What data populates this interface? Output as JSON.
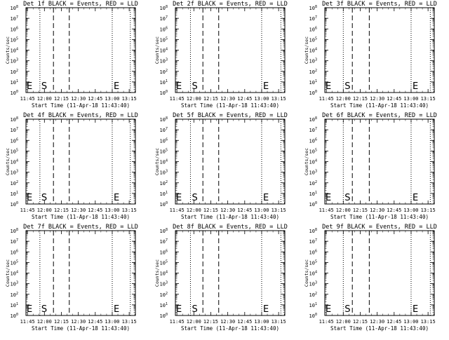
{
  "chart_data": {
    "type": "line",
    "layout": {
      "rows": 3,
      "cols": 3
    },
    "y_scale": "log",
    "ylim": [
      1,
      100000000
    ],
    "y_tick_base": "10",
    "y_tick_exponents": [
      "0",
      "1",
      "2",
      "3",
      "4",
      "5",
      "6",
      "7",
      "8"
    ],
    "x_tick_labels": [
      "11:45",
      "12:00",
      "12:15",
      "12:30",
      "12:45",
      "13:00",
      "13:15"
    ],
    "ylabel": "Counts/sec",
    "xlabel": "Start Time (11-Apr-18 11:43:40)",
    "markers": {
      "start": "S",
      "end": "E",
      "edge": "E"
    },
    "series": [
      {
        "name": "Events",
        "color": "#000000"
      },
      {
        "name": "LLD",
        "color": "#ff0000"
      }
    ],
    "panels": [
      {
        "title": "Det 1f BLACK = Events, RED = LLD",
        "dotted_x": [
          "11:56",
          "13:00",
          "13:16"
        ],
        "dashed_x": [
          "12:08",
          "12:22"
        ]
      },
      {
        "title": "Det 2f BLACK = Events, RED = LLD",
        "dotted_x": [
          "11:57",
          "13:00",
          "13:17"
        ],
        "dashed_x": [
          "12:08",
          "12:22"
        ]
      },
      {
        "title": "Det 3f BLACK = Events, RED = LLD",
        "dotted_x": [
          "12:00",
          "13:00",
          "13:17"
        ],
        "dashed_x": [
          "12:08",
          "12:23"
        ]
      },
      {
        "title": "Det 4f BLACK = Events, RED = LLD",
        "dotted_x": [
          "11:56",
          "13:00",
          "13:16"
        ],
        "dashed_x": [
          "12:08",
          "12:22"
        ]
      },
      {
        "title": "Det 5f BLACK = Events, RED = LLD",
        "dotted_x": [
          "11:57",
          "13:00",
          "13:17"
        ],
        "dashed_x": [
          "12:08",
          "12:22"
        ]
      },
      {
        "title": "Det 6f BLACK = Events, RED = LLD",
        "dotted_x": [
          "12:00",
          "13:00",
          "13:17"
        ],
        "dashed_x": [
          "12:08",
          "12:23"
        ]
      },
      {
        "title": "Det 7f BLACK = Events, RED = LLD",
        "dotted_x": [
          "11:56",
          "13:00",
          "13:16"
        ],
        "dashed_x": [
          "12:08",
          "12:22"
        ]
      },
      {
        "title": "Det 8f BLACK = Events, RED = LLD",
        "dotted_x": [
          "11:57",
          "13:00",
          "13:17"
        ],
        "dashed_x": [
          "12:08",
          "12:22"
        ]
      },
      {
        "title": "Det 9f BLACK = Events, RED = LLD",
        "dotted_x": [
          "12:00",
          "13:00",
          "13:17"
        ],
        "dashed_x": [
          "12:08",
          "12:23"
        ]
      }
    ]
  }
}
